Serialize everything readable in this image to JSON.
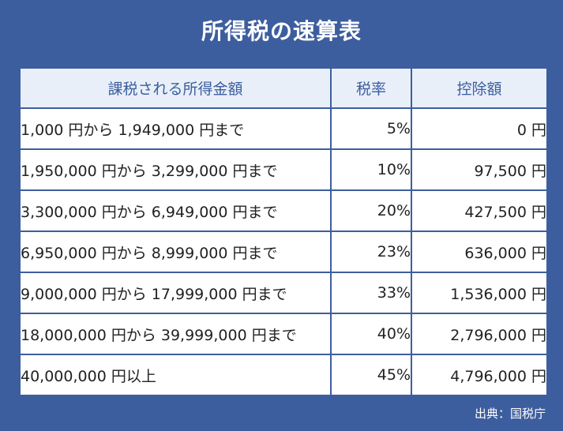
{
  "title": "所得税の速算表",
  "table": {
    "headers": [
      "課税される所得金額",
      "税率",
      "控除額"
    ],
    "rows": [
      {
        "range": "1,000 円から 1,949,000 円まで",
        "rate": "5%",
        "deduction": "0 円"
      },
      {
        "range": "1,950,000 円から 3,299,000 円まで",
        "rate": "10%",
        "deduction": "97,500 円"
      },
      {
        "range": "3,300,000 円から 6,949,000 円まで",
        "rate": "20%",
        "deduction": "427,500 円"
      },
      {
        "range": "6,950,000 円から 8,999,000 円まで",
        "rate": "23%",
        "deduction": "636,000 円"
      },
      {
        "range": "9,000,000 円から 17,999,000 円まで",
        "rate": "33%",
        "deduction": "1,536,000 円"
      },
      {
        "range": "18,000,000 円から 39,999,000 円まで",
        "rate": "40%",
        "deduction": "2,796,000 円"
      },
      {
        "range": "40,000,000 円以上",
        "rate": "45%",
        "deduction": "4,796,000 円"
      }
    ]
  },
  "source": "出典：国税庁",
  "colors": {
    "background": "#3d5e9e",
    "header_bg": "#e8eff9",
    "header_text": "#3d5e9e",
    "cell_bg": "#ffffff"
  }
}
